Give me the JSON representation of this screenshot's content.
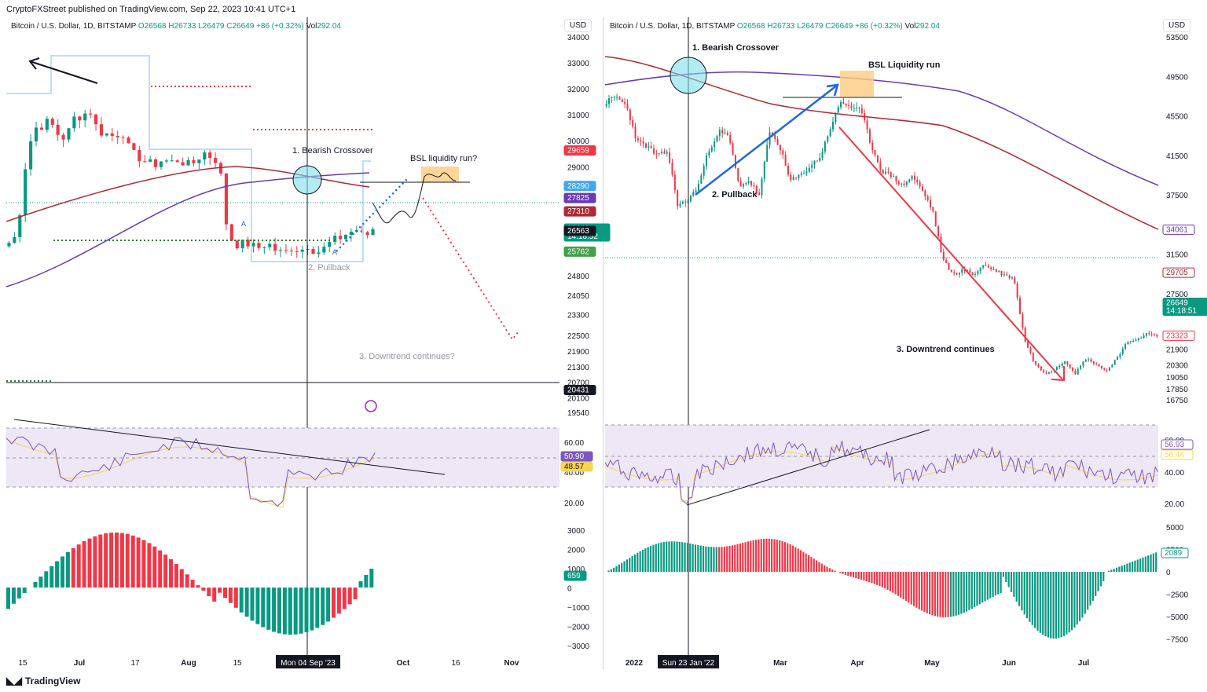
{
  "header": {
    "published": "CryptoFXStreet published on TradingView.com, Sep 22, 2023 10:41 UTC+1"
  },
  "footer": {
    "brand": "TradingView",
    "logo_icon": "tradingview-logo-icon"
  },
  "colors": {
    "bull": "#089981",
    "bear": "#f23645",
    "ema_red": "#b22833",
    "ema_purple": "#673ab7",
    "rsi_band": "#ede7f6",
    "rsi_ma": "#f7d64e",
    "rsi_line": "#7e57c2",
    "blue_box": "#bbdefb",
    "orange_box": "#ffcc80",
    "cyan_circle": "#80deea"
  },
  "left_chart": {
    "ticker": {
      "name": "Bitcoin / U.S. Dollar, 1D, BITSTAMP",
      "o": "O26568",
      "h": "H26733",
      "l": "L26479",
      "c": "C26649",
      "chg": "+86 (+0.32%)",
      "vol_label": "Vol",
      "vol": "292.04"
    },
    "currency": "USD",
    "price_ticks": [
      "34000",
      "33000",
      "32000",
      "31000",
      "30000",
      "29000",
      "28290",
      "27825",
      "27310",
      "26649",
      "26563",
      "25762",
      "24800",
      "24050",
      "23300",
      "22500",
      "21900",
      "21300",
      "20700",
      "20431",
      "20100",
      "19540"
    ],
    "price_badges": [
      {
        "value": "29659",
        "color": "#f23645"
      },
      {
        "value": "28290",
        "color": "#42a5f5"
      },
      {
        "value": "27825",
        "color": "#673ab7"
      },
      {
        "value": "27310",
        "color": "#b22833"
      },
      {
        "value": "26649",
        "color": "#089981",
        "sub": "14:18:52"
      },
      {
        "value": "26563",
        "color": "#131722"
      },
      {
        "value": "25762",
        "color": "#43a047"
      },
      {
        "value": "20431",
        "color": "#131722"
      }
    ],
    "annotations": {
      "crossover": "1. Bearish Crossover",
      "pullback": "2. Pullback",
      "downtrend": "3. Downtrend continues?",
      "bsl": "BSL liquidity run?",
      "marker_a1": "A",
      "marker_a2": "A"
    },
    "rsi_ticks": [
      "60.00",
      "40.00",
      "20.00"
    ],
    "rsi_badges": [
      {
        "value": "50.90",
        "color": "#7e57c2"
      },
      {
        "value": "48.57",
        "color": "#f7d64e"
      }
    ],
    "macd_ticks": [
      "3000",
      "2000",
      "1000",
      "0",
      "−1000",
      "−2000",
      "−3000"
    ],
    "macd_badge": "659",
    "x_ticks": [
      "15",
      "Jul",
      "17",
      "Aug",
      "15",
      "Oct",
      "16",
      "Nov"
    ],
    "crosshair_label": "Mon 04 Sep '23"
  },
  "right_chart": {
    "ticker": {
      "name": "Bitcoin / U.S. Dollar, 1D, BITSTAMP",
      "o": "O26568",
      "h": "H26733",
      "l": "L26479",
      "c": "C26649",
      "chg": "+86 (+0.32%)",
      "vol_label": "Vol",
      "vol": "292.04"
    },
    "currency": "USD",
    "price_ticks": [
      "53500",
      "49500",
      "45500",
      "41500",
      "37500",
      "34061",
      "31500",
      "29705",
      "27500",
      "23323",
      "21900",
      "20300",
      "19050",
      "17850",
      "16750"
    ],
    "price_badges": [
      {
        "value": "34061",
        "color": "#673ab7",
        "outline": true
      },
      {
        "value": "29705",
        "color": "#b22833",
        "outline": true
      },
      {
        "value": "26649",
        "color": "#089981",
        "sub": "14:18:51"
      },
      {
        "value": "23323",
        "color": "#f23645",
        "outline": true
      }
    ],
    "annotations": {
      "crossover": "1. Bearish Crossover",
      "pullback": "2. Pullback",
      "downtrend": "3. Downtrend continues",
      "bsl": "BSL Liquidity run"
    },
    "rsi_ticks": [
      "60.00",
      "40.00",
      "20.00"
    ],
    "rsi_badges": [
      {
        "value": "56.93",
        "color": "#7e57c2"
      },
      {
        "value": "56.44",
        "color": "#f7d64e"
      }
    ],
    "macd_ticks": [
      "5000",
      "2500",
      "0",
      "−2500",
      "−5000",
      "−7500"
    ],
    "macd_badge": "2089",
    "x_ticks": [
      "2022",
      "Mar",
      "Apr",
      "May",
      "Jun",
      "Jul"
    ],
    "crosshair_label": "Sun 23 Jan '22"
  },
  "chart_data": [
    {
      "type": "candlestick",
      "title": "Bitcoin / U.S. Dollar, 1D, BITSTAMP",
      "ylim": [
        19540,
        34000
      ],
      "close_path": [
        26100,
        26400,
        29000,
        30500,
        30600,
        30800,
        30300,
        30100,
        30900,
        31000,
        31200,
        30400,
        30300,
        30200,
        30400,
        29600,
        29400,
        29200,
        29100,
        29300,
        29200,
        29300,
        29100,
        29200,
        29600,
        29400,
        29200,
        26500,
        26000,
        26100,
        26000,
        25900,
        26100,
        25800,
        25700,
        25900,
        25800,
        26000,
        25700,
        25900,
        26200,
        26300,
        26500,
        26600,
        26300,
        26650
      ]
    },
    {
      "type": "candlestick",
      "title": "Bitcoin / U.S. Dollar, 1D, BITSTAMP",
      "ylim": [
        16750,
        53500
      ],
      "close_path": [
        47000,
        47500,
        46500,
        43000,
        42500,
        41500,
        42000,
        36500,
        37000,
        38500,
        42000,
        44000,
        43500,
        38500,
        39000,
        37500,
        44000,
        42500,
        39000,
        39500,
        40500,
        41500,
        44500,
        47000,
        46500,
        46000,
        42500,
        40000,
        39500,
        38500,
        39500,
        38000,
        36000,
        31000,
        29500,
        30000,
        29500,
        30500,
        30000,
        29500,
        29000,
        23000,
        20500,
        19500,
        20000,
        20800,
        19500,
        21000,
        20500,
        19700,
        21000,
        22500,
        23000,
        23500,
        23300
      ]
    }
  ]
}
